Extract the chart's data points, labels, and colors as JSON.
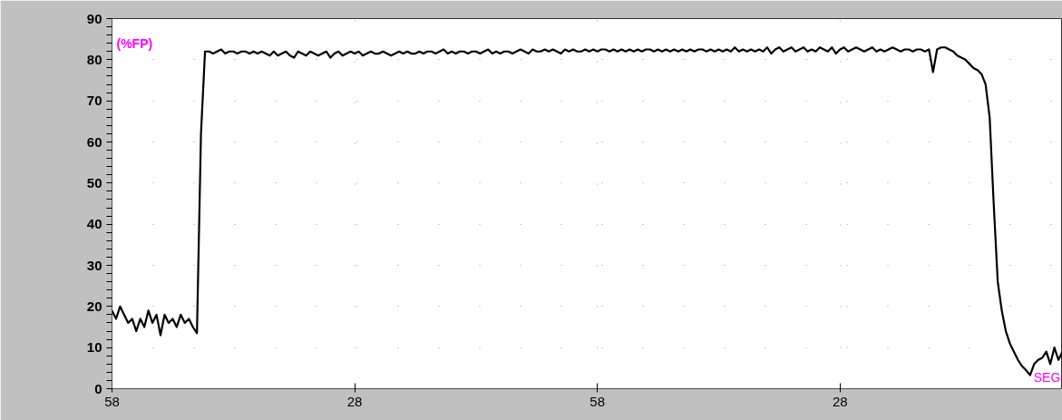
{
  "chart_data": {
    "type": "line",
    "xlabel": "SEG",
    "ylabel": "(%FP)",
    "categories": [
      "58",
      null,
      null,
      null,
      null,
      null,
      null,
      null,
      null,
      null,
      null,
      null,
      null,
      null,
      null,
      null,
      null,
      null,
      null,
      null,
      null,
      null,
      null,
      null,
      null,
      null,
      null,
      null,
      null,
      null,
      null,
      null,
      null,
      null,
      null,
      null,
      null,
      null,
      null,
      null,
      null,
      null,
      null,
      null,
      null,
      null,
      null,
      null,
      null,
      null,
      null,
      null,
      null,
      null,
      null,
      null,
      null,
      null,
      null,
      null,
      "28",
      null,
      null,
      null,
      null,
      null,
      null,
      null,
      null,
      null,
      null,
      null,
      null,
      null,
      null,
      null,
      null,
      null,
      null,
      null,
      null,
      null,
      null,
      null,
      null,
      null,
      null,
      null,
      null,
      null,
      null,
      null,
      null,
      null,
      null,
      null,
      null,
      null,
      null,
      null,
      null,
      null,
      null,
      null,
      null,
      null,
      null,
      null,
      null,
      null,
      null,
      null,
      null,
      null,
      null,
      null,
      null,
      null,
      null,
      null,
      "58",
      null,
      null,
      null,
      null,
      null,
      null,
      null,
      null,
      null,
      null,
      null,
      null,
      null,
      null,
      null,
      null,
      null,
      null,
      null,
      null,
      null,
      null,
      null,
      null,
      null,
      null,
      null,
      null,
      null,
      null,
      null,
      null,
      null,
      null,
      null,
      null,
      null,
      null,
      null,
      null,
      null,
      null,
      null,
      null,
      null,
      null,
      null,
      null,
      null,
      null,
      null,
      null,
      null,
      null,
      null,
      null,
      null,
      null,
      null,
      "28",
      null,
      null,
      null,
      null,
      null,
      null,
      null,
      null,
      null,
      null,
      null,
      null,
      null,
      null,
      null,
      null,
      null,
      null,
      null,
      null,
      null,
      null,
      null,
      null,
      null,
      null,
      null,
      null,
      null,
      null,
      null,
      null,
      null,
      null,
      null,
      null,
      null,
      null,
      null,
      null,
      null,
      null,
      null,
      null,
      null,
      null,
      null,
      null,
      null,
      null,
      null,
      null,
      null,
      null,
      null
    ],
    "series": [
      {
        "color": "#000000",
        "values": [
          19,
          17,
          20,
          18,
          16,
          17,
          14,
          17,
          15,
          19,
          16,
          18,
          13,
          18,
          16,
          17,
          15,
          18,
          16,
          17,
          15,
          13.5,
          62,
          82,
          82,
          81.5,
          82,
          82.5,
          81.5,
          82,
          82,
          81.5,
          82,
          82,
          81.5,
          82,
          81.5,
          82,
          81.5,
          81,
          82,
          81,
          81.5,
          82,
          81,
          80.5,
          82,
          81.5,
          81,
          82,
          81.5,
          81,
          81.5,
          82,
          80.5,
          81.5,
          82,
          81,
          81.5,
          82,
          81.5,
          82,
          81,
          81.5,
          82,
          81.5,
          81.5,
          82,
          81.5,
          81,
          81.5,
          82,
          81.5,
          82,
          81.5,
          81.5,
          82,
          81.5,
          82,
          82,
          81.5,
          82,
          82.5,
          81.5,
          82,
          81.5,
          82,
          82,
          81.5,
          82,
          82,
          81.5,
          82,
          82.5,
          81.5,
          82,
          81.5,
          82,
          82,
          81.5,
          82,
          82.5,
          82,
          81.5,
          82.5,
          82,
          82,
          82.5,
          82,
          82.5,
          82,
          81.5,
          82.5,
          82,
          82.5,
          82,
          82,
          82.5,
          82,
          82.5,
          82,
          82.5,
          82.5,
          82,
          82.5,
          82,
          82.5,
          82,
          82.5,
          82,
          82.5,
          82,
          82.5,
          82.5,
          82,
          82.5,
          82,
          82.5,
          82,
          82.5,
          82,
          82.5,
          82,
          82.5,
          82,
          82.5,
          82.5,
          82,
          82.5,
          82,
          82.5,
          82,
          82.5,
          82,
          83,
          82,
          82.5,
          82,
          82.5,
          82,
          82.5,
          82,
          83,
          81.5,
          82.5,
          83,
          82,
          82.5,
          83,
          82,
          82.5,
          83,
          82,
          82.5,
          82,
          83,
          82.5,
          82,
          83,
          81.5,
          82.5,
          83,
          82,
          82.5,
          83,
          82.5,
          82,
          82.5,
          83,
          82,
          82.5,
          82,
          82.5,
          83,
          82.5,
          82,
          82.5,
          82.5,
          82,
          82.5,
          82.5,
          82,
          82.5,
          77,
          82.5,
          83,
          83,
          82.5,
          82,
          81,
          80.5,
          80,
          79,
          78,
          77.5,
          76.5,
          74,
          66,
          45,
          26,
          19,
          14,
          11,
          9,
          7,
          5.5,
          4.5,
          3.3,
          6,
          7,
          7.5,
          9,
          6,
          10,
          7,
          9
        ]
      }
    ],
    "ylim": [
      0,
      90
    ],
    "yticks": [
      0,
      {
        "value": 2,
        "label": null
      },
      {
        "value": 4,
        "label": null
      },
      {
        "value": 6,
        "label": null
      },
      {
        "value": 8,
        "label": null
      },
      10,
      {
        "value": 12,
        "label": null
      },
      {
        "value": 14,
        "label": null
      },
      {
        "value": 16,
        "label": null
      },
      {
        "value": 18,
        "label": null
      },
      20,
      {
        "value": 22,
        "label": null
      },
      {
        "value": 24,
        "label": null
      },
      {
        "value": 26,
        "label": null
      },
      {
        "value": 28,
        "label": null
      },
      30,
      {
        "value": 32,
        "label": null
      },
      {
        "value": 34,
        "label": null
      },
      {
        "value": 36,
        "label": null
      },
      {
        "value": 38,
        "label": null
      },
      40,
      {
        "value": 42,
        "label": null
      },
      {
        "value": 44,
        "label": null
      },
      {
        "value": 46,
        "label": null
      },
      {
        "value": 48,
        "label": null
      },
      50,
      {
        "value": 52,
        "label": null
      },
      {
        "value": 54,
        "label": null
      },
      {
        "value": 56,
        "label": null
      },
      {
        "value": 58,
        "label": null
      },
      60,
      {
        "value": 62,
        "label": null
      },
      {
        "value": 64,
        "label": null
      },
      {
        "value": 66,
        "label": null
      },
      {
        "value": 68,
        "label": null
      },
      70,
      {
        "value": 72,
        "label": null
      },
      {
        "value": 74,
        "label": null
      },
      {
        "value": 76,
        "label": null
      },
      {
        "value": 78,
        "label": null
      },
      80,
      {
        "value": 82,
        "label": null
      },
      {
        "value": 84,
        "label": null
      },
      {
        "value": 86,
        "label": null
      },
      {
        "value": 88,
        "label": null
      },
      90
    ],
    "grid": true,
    "marker": "none",
    "line_style": "solid"
  }
}
